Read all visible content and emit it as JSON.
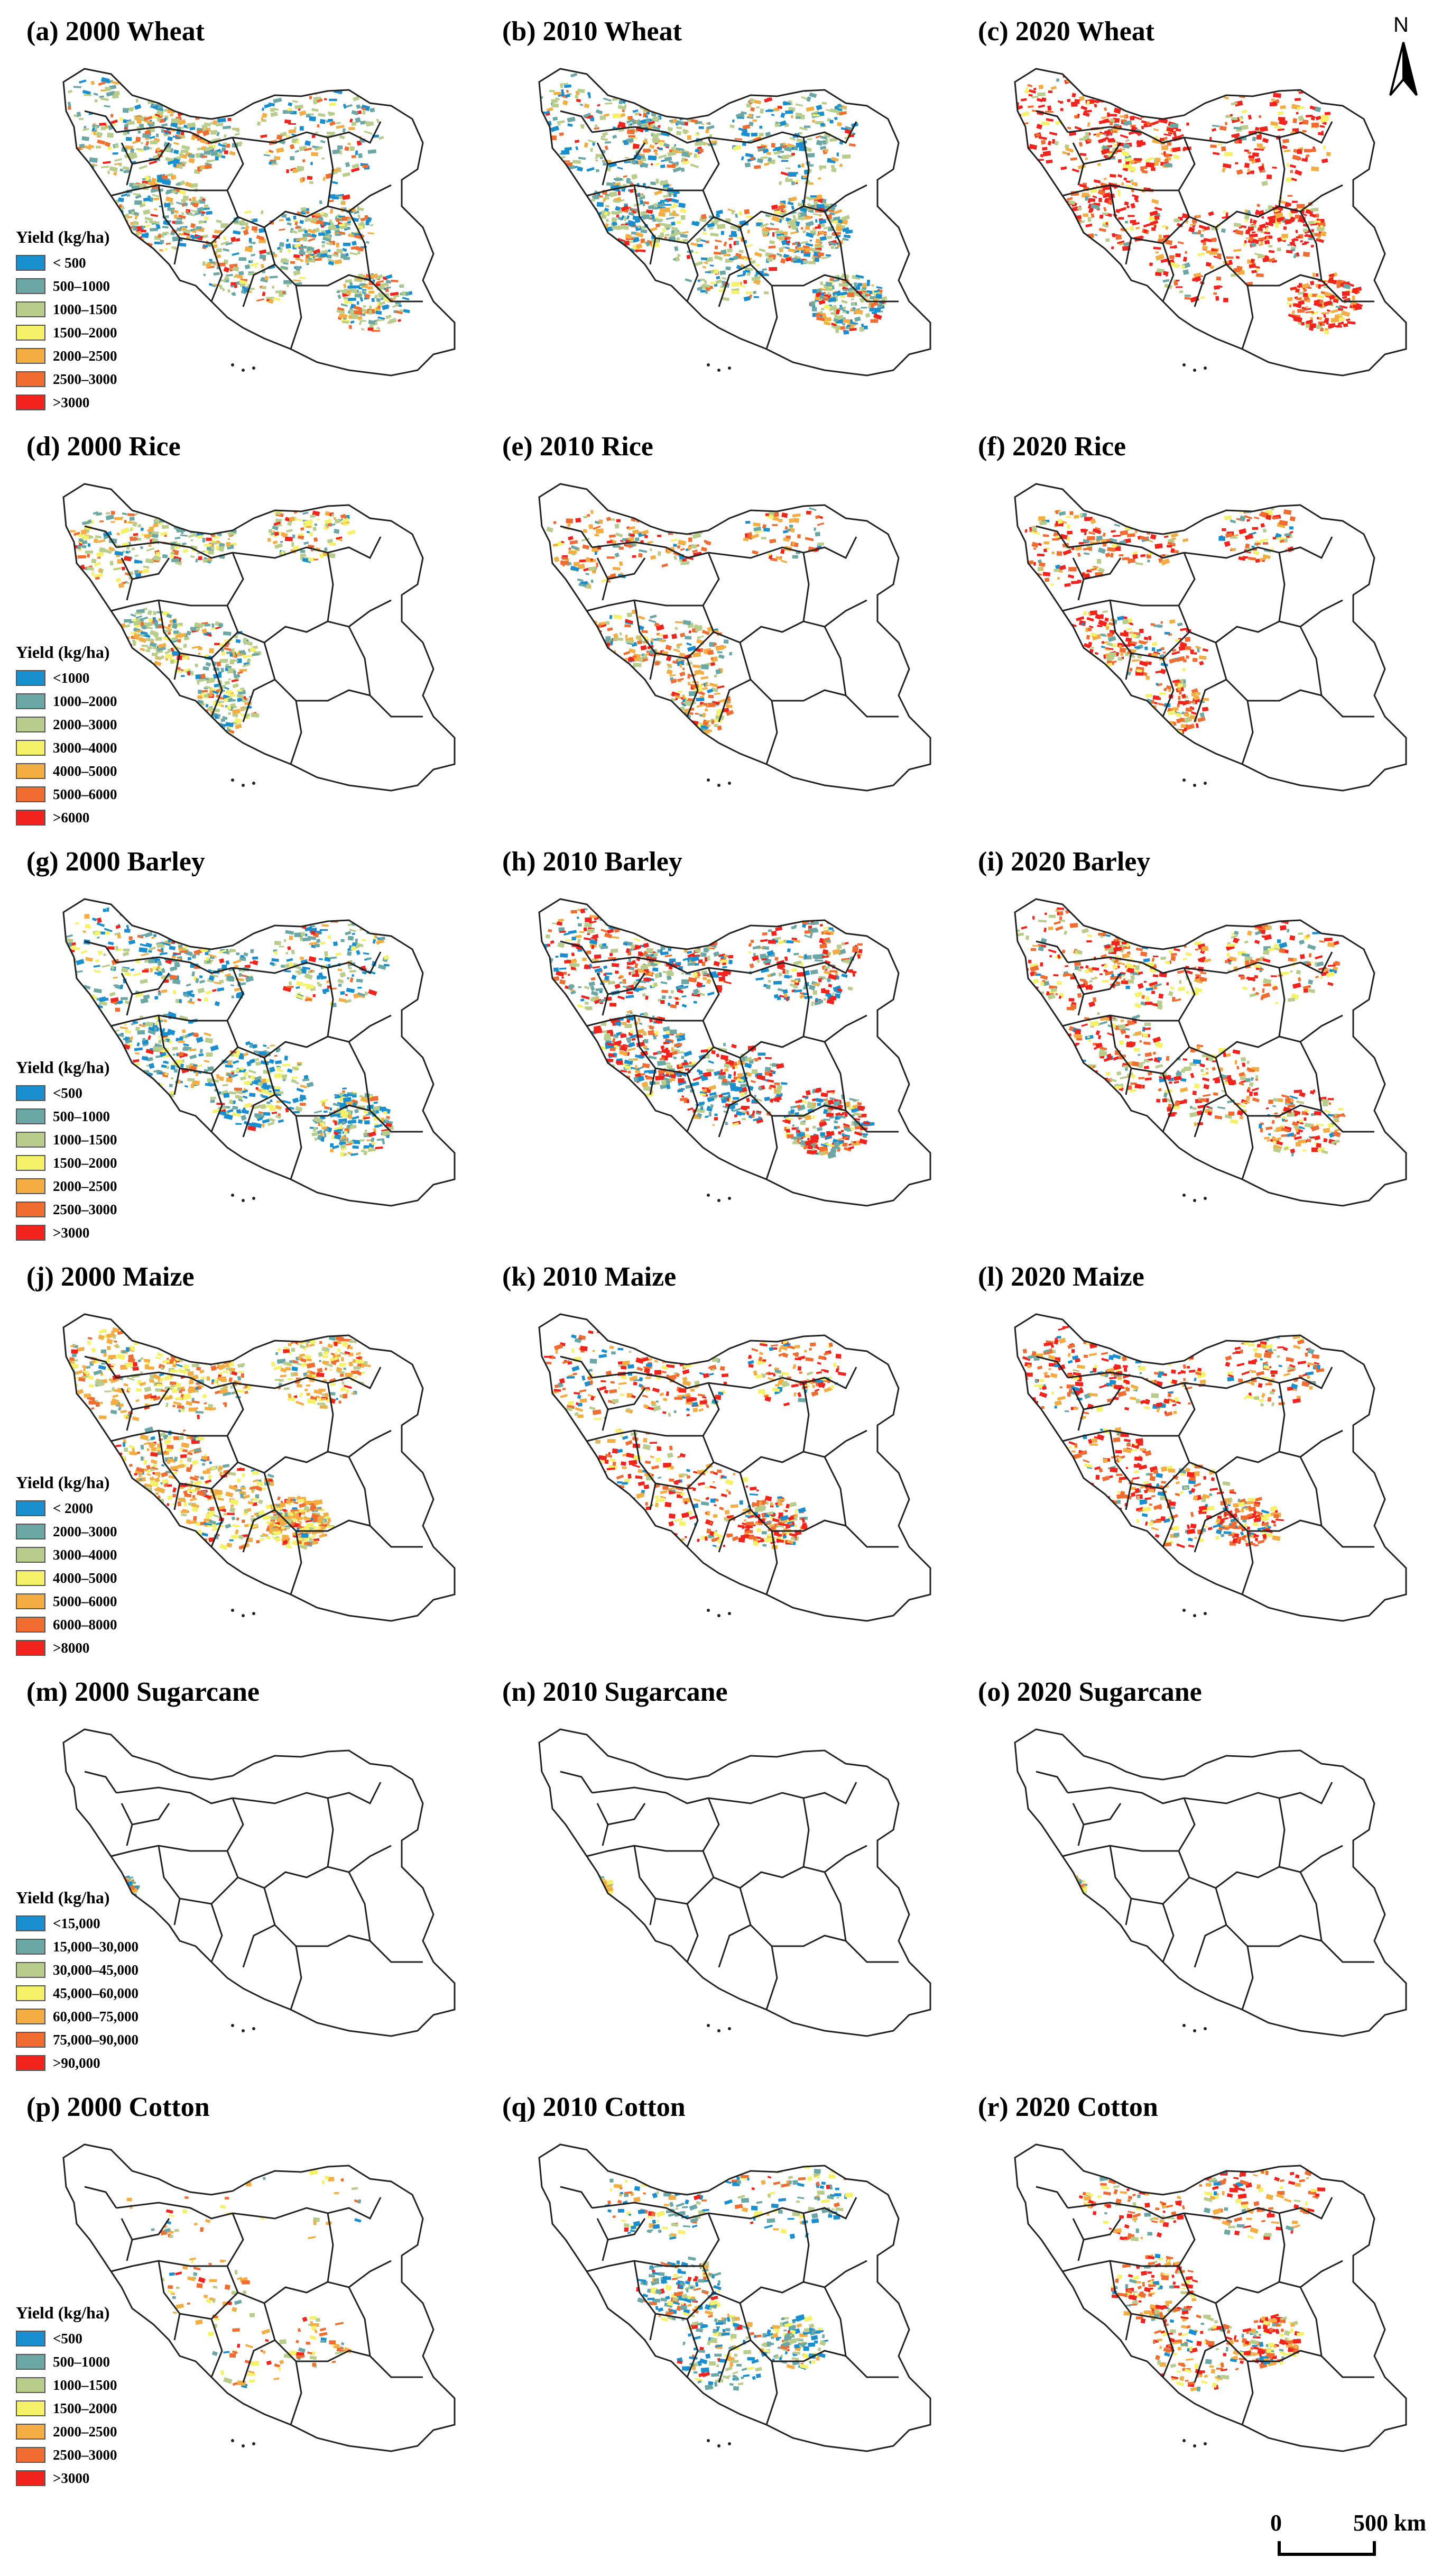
{
  "north_label": "N",
  "scale": {
    "zero": "0",
    "end": "500 km"
  },
  "legend_title": "Yield (kg/ha)",
  "colors": [
    "#1a8fcf",
    "#6ba7a4",
    "#b8cc8b",
    "#f5f26a",
    "#f4ad42",
    "#f06c31",
    "#f2221c"
  ],
  "panels": [
    {
      "title": "(a) 2000 Wheat",
      "crop": "wheat",
      "year": "2000",
      "density": 0.85,
      "palette": [
        2,
        1,
        0,
        4,
        5,
        6,
        3
      ]
    },
    {
      "title": "(b) 2010 Wheat",
      "crop": "wheat",
      "year": "2010",
      "density": 0.95,
      "palette": [
        2,
        0,
        1,
        4,
        5,
        6,
        3
      ]
    },
    {
      "title": "(c) 2020 Wheat",
      "crop": "wheat",
      "year": "2020",
      "density": 0.7,
      "palette": [
        6,
        6,
        5,
        4,
        3,
        2,
        1
      ]
    },
    {
      "title": "(d) 2000 Rice",
      "crop": "rice",
      "year": "2000",
      "density": 0.55,
      "palette": [
        2,
        1,
        3,
        4,
        5,
        0,
        6
      ]
    },
    {
      "title": "(e) 2010 Rice",
      "crop": "rice",
      "year": "2010",
      "density": 0.4,
      "palette": [
        4,
        5,
        6,
        2,
        1,
        0,
        3
      ]
    },
    {
      "title": "(f) 2020 Rice",
      "crop": "rice",
      "year": "2020",
      "density": 0.4,
      "palette": [
        6,
        5,
        4,
        3,
        2,
        1,
        0
      ]
    },
    {
      "title": "(g) 2000 Barley",
      "crop": "barley",
      "year": "2000",
      "density": 0.75,
      "palette": [
        0,
        1,
        2,
        3,
        4,
        6,
        5
      ]
    },
    {
      "title": "(h) 2010 Barley",
      "crop": "barley",
      "year": "2010",
      "density": 0.9,
      "palette": [
        6,
        0,
        1,
        2,
        5,
        4,
        3
      ]
    },
    {
      "title": "(i) 2020 Barley",
      "crop": "barley",
      "year": "2020",
      "density": 0.6,
      "palette": [
        6,
        5,
        2,
        3,
        4,
        1,
        0
      ]
    },
    {
      "title": "(j) 2000 Maize",
      "crop": "maize",
      "year": "2000",
      "density": 0.75,
      "palette": [
        4,
        3,
        5,
        2,
        1,
        6,
        0
      ]
    },
    {
      "title": "(k) 2010 Maize",
      "crop": "maize",
      "year": "2010",
      "density": 0.5,
      "palette": [
        6,
        5,
        4,
        3,
        0,
        2,
        1
      ]
    },
    {
      "title": "(l) 2020 Maize",
      "crop": "maize",
      "year": "2020",
      "density": 0.5,
      "palette": [
        6,
        5,
        4,
        3,
        0,
        1,
        2
      ]
    },
    {
      "title": "(m) 2000 Sugarcane",
      "crop": "sugarcane",
      "year": "2000",
      "density": 0.0,
      "palette": [
        0,
        1,
        2,
        3,
        4,
        5,
        6
      ]
    },
    {
      "title": "(n) 2010 Sugarcane",
      "crop": "sugarcane",
      "year": "2010",
      "density": 0.0,
      "palette": [
        3,
        4,
        1,
        2,
        0,
        5,
        6
      ]
    },
    {
      "title": "(o) 2020 Sugarcane",
      "crop": "sugarcane",
      "year": "2020",
      "density": 0.0,
      "palette": [
        3,
        4,
        1,
        2,
        0,
        5,
        6
      ]
    },
    {
      "title": "(p) 2000 Cotton",
      "crop": "cotton",
      "year": "2000",
      "density": 0.12,
      "palette": [
        4,
        3,
        5,
        2,
        1,
        6,
        0
      ]
    },
    {
      "title": "(q) 2010 Cotton",
      "crop": "cotton",
      "year": "2010",
      "density": 0.45,
      "palette": [
        0,
        1,
        2,
        3,
        4,
        5,
        6
      ]
    },
    {
      "title": "(r) 2020 Cotton",
      "crop": "cotton",
      "year": "2020",
      "density": 0.45,
      "palette": [
        6,
        5,
        4,
        3,
        2,
        1,
        0
      ]
    }
  ],
  "legends": [
    {
      "for": "wheat",
      "labels": [
        "< 500",
        "500–1000",
        "1000–1500",
        "1500–2000",
        "2000–2500",
        "2500–3000",
        ">3000"
      ]
    },
    {
      "for": "rice",
      "labels": [
        "<1000",
        "1000–2000",
        "2000–3000",
        "3000–4000",
        "4000–5000",
        "5000–6000",
        ">6000"
      ]
    },
    {
      "for": "barley",
      "labels": [
        "<500",
        "500–1000",
        "1000–1500",
        "1500–2000",
        "2000–2500",
        "2500–3000",
        ">3000"
      ]
    },
    {
      "for": "maize",
      "labels": [
        "< 2000",
        "2000–3000",
        "3000–4000",
        "4000–5000",
        "5000–6000",
        "6000–8000",
        ">8000"
      ]
    },
    {
      "for": "sugarcane",
      "labels": [
        "<15,000",
        "15,000–30,000",
        "30,000–45,000",
        "45,000–60,000",
        "60,000–75,000",
        "75,000–90,000",
        ">90,000"
      ]
    },
    {
      "for": "cotton",
      "labels": [
        "<500",
        "500–1000",
        "1000–1500",
        "1500–2000",
        "2000–2500",
        "2500–3000",
        ">3000"
      ]
    }
  ]
}
